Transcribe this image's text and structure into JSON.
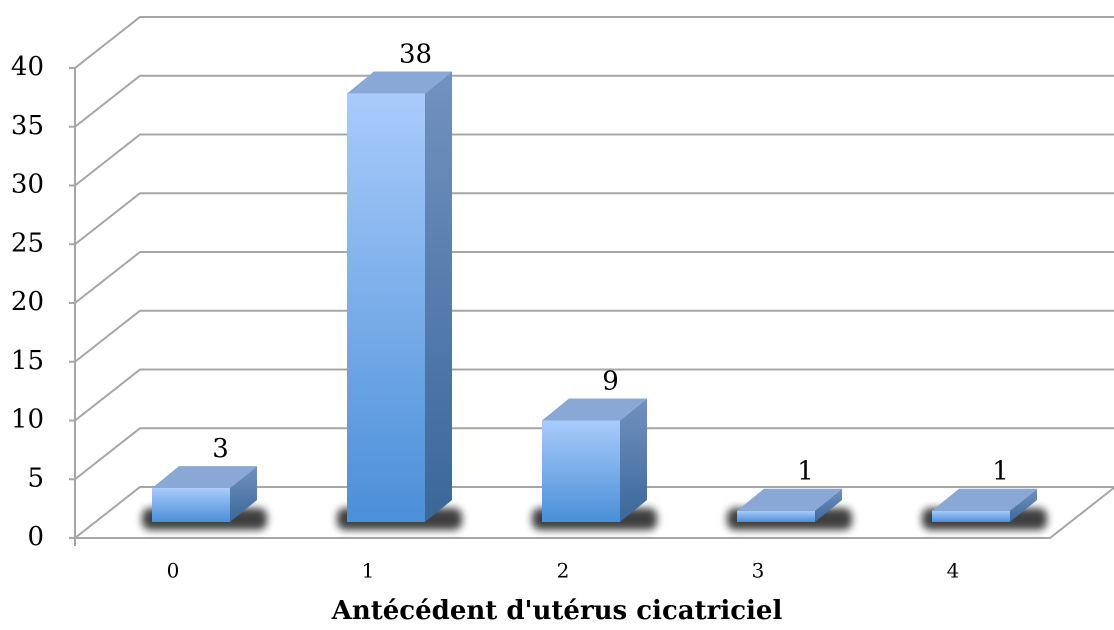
{
  "chart_data": {
    "type": "bar3d",
    "x_label": "Antécédent d'utérus cicatriciel",
    "categories": [
      "0",
      "1",
      "2",
      "3",
      "4"
    ],
    "values": [
      3,
      38,
      9,
      1,
      1
    ],
    "ylim": [
      0,
      40
    ],
    "yticks": [
      0,
      5,
      10,
      15,
      20,
      25,
      30,
      35,
      40
    ],
    "grid": true,
    "color": "#6fa3e6"
  }
}
